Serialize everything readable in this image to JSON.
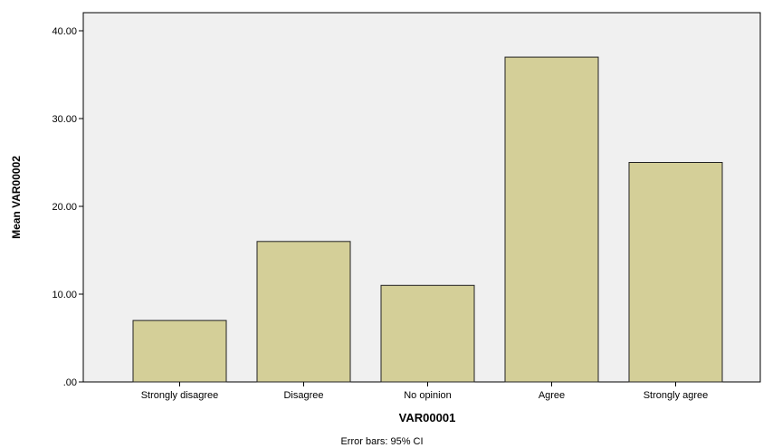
{
  "chart_data": {
    "type": "bar",
    "categories": [
      "Strongly disagree",
      "Disagree",
      "No opinion",
      "Agree",
      "Strongly agree"
    ],
    "values": [
      7,
      16,
      11,
      37,
      25
    ],
    "xlabel": "VAR00001",
    "ylabel": "Mean VAR00002",
    "ylim": [
      0,
      40
    ],
    "yticks": [
      0,
      10,
      20,
      30,
      40
    ],
    "ytick_labels": [
      ".00",
      "10.00",
      "20.00",
      "30.00",
      "40.00"
    ],
    "footnote": "Error bars: 95% CI",
    "grid": false,
    "colors": {
      "bar_fill": "#d4cf98",
      "bar_stroke": "#222222",
      "plot_background": "#f0f0f0"
    }
  }
}
